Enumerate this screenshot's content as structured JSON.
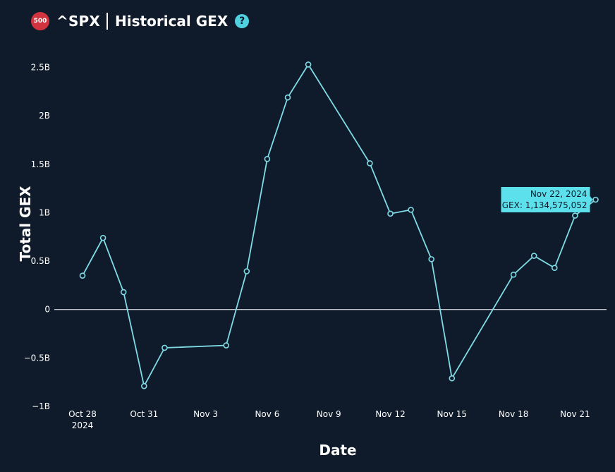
{
  "header": {
    "badge": "500",
    "symbol": "^SPX",
    "title": "Historical GEX",
    "help_glyph": "?"
  },
  "colors": {
    "background": "#0f1b2a",
    "line": "#7fdbe6",
    "tooltip_bg": "#5ce1ec",
    "badge": "#d1343f",
    "help": "#4fd1e0"
  },
  "chart_data": {
    "type": "line",
    "xlabel": "Date",
    "ylabel": "Total GEX",
    "ylim": [
      -1000000000,
      2650000000
    ],
    "y_ticks": [
      {
        "value": -1000000000,
        "label": "−1B"
      },
      {
        "value": -500000000,
        "label": "−0.5B"
      },
      {
        "value": 0,
        "label": "0"
      },
      {
        "value": 500000000,
        "label": "0.5B"
      },
      {
        "value": 1000000000,
        "label": "1B"
      },
      {
        "value": 1500000000,
        "label": "1.5B"
      },
      {
        "value": 2000000000,
        "label": "2B"
      },
      {
        "value": 2500000000,
        "label": "2.5B"
      }
    ],
    "x_ticks": [
      {
        "date": "2024-10-28",
        "label": "Oct 28",
        "sublabel": "2024"
      },
      {
        "date": "2024-10-31",
        "label": "Oct 31"
      },
      {
        "date": "2024-11-03",
        "label": "Nov 3"
      },
      {
        "date": "2024-11-06",
        "label": "Nov 6"
      },
      {
        "date": "2024-11-09",
        "label": "Nov 9"
      },
      {
        "date": "2024-11-12",
        "label": "Nov 12"
      },
      {
        "date": "2024-11-15",
        "label": "Nov 15"
      },
      {
        "date": "2024-11-18",
        "label": "Nov 18"
      },
      {
        "date": "2024-11-21",
        "label": "Nov 21"
      }
    ],
    "zero_line": true,
    "series": [
      {
        "points": [
          {
            "date": "2024-10-28",
            "y": 350000000
          },
          {
            "date": "2024-10-29",
            "y": 740000000
          },
          {
            "date": "2024-10-30",
            "y": 180000000
          },
          {
            "date": "2024-10-31",
            "y": -790000000
          },
          {
            "date": "2024-11-01",
            "y": -395000000
          },
          {
            "date": "2024-11-04",
            "y": -370000000
          },
          {
            "date": "2024-11-05",
            "y": 395000000
          },
          {
            "date": "2024-11-06",
            "y": 1555000000
          },
          {
            "date": "2024-11-07",
            "y": 2190000000
          },
          {
            "date": "2024-11-08",
            "y": 2530000000
          },
          {
            "date": "2024-11-11",
            "y": 1510000000
          },
          {
            "date": "2024-11-12",
            "y": 990000000
          },
          {
            "date": "2024-11-13",
            "y": 1030000000
          },
          {
            "date": "2024-11-14",
            "y": 520000000
          },
          {
            "date": "2024-11-15",
            "y": -710000000
          },
          {
            "date": "2024-11-18",
            "y": 360000000
          },
          {
            "date": "2024-11-19",
            "y": 555000000
          },
          {
            "date": "2024-11-20",
            "y": 430000000
          },
          {
            "date": "2024-11-21",
            "y": 970000000
          },
          {
            "date": "2024-11-22",
            "y": 1134575052
          }
        ]
      }
    ],
    "tooltip": {
      "date": "2024-11-22",
      "line1": "Nov 22, 2024",
      "line2": "GEX: 1,134,575,052"
    }
  }
}
